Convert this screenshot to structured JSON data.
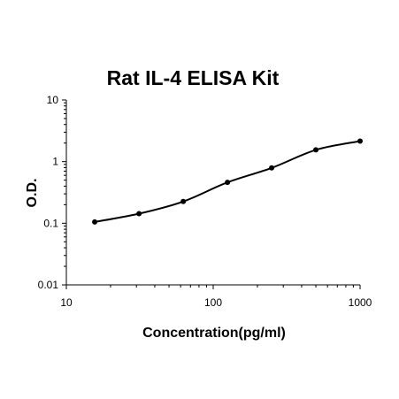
{
  "chart_data": {
    "type": "scatter",
    "title": "Rat IL-4 ELISA Kit",
    "xlabel": "Concentration(pg/ml)",
    "ylabel": "O.D.",
    "xscale": "log",
    "yscale": "log",
    "xlim": [
      10,
      1000
    ],
    "ylim": [
      0.01,
      10
    ],
    "x_ticks": [
      {
        "value": 10,
        "label": "10"
      },
      {
        "value": 100,
        "label": "100"
      },
      {
        "value": 1000,
        "label": "1000"
      }
    ],
    "y_ticks": [
      {
        "value": 10,
        "label": "10"
      },
      {
        "value": 1,
        "label": "1"
      },
      {
        "value": 0.1,
        "label": "0.1"
      },
      {
        "value": 0.01,
        "label": "0.01"
      }
    ],
    "grid": false,
    "legend": "none",
    "fit_line": "smooth",
    "series": [
      {
        "x": [
          15.6,
          31.25,
          62.5,
          125,
          250,
          500,
          1000
        ],
        "y": [
          0.105,
          0.143,
          0.225,
          0.46,
          0.79,
          1.55,
          2.15
        ]
      }
    ],
    "colors": {
      "points": "#000000",
      "curve": "#000000",
      "axis": "#000000"
    }
  }
}
